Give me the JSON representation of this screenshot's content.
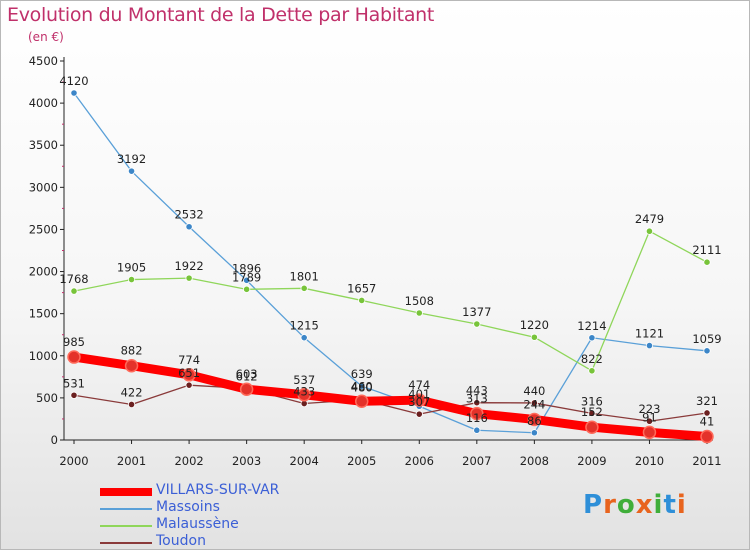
{
  "title": "Evolution du Montant de la Dette par Habitant",
  "unit": "(en €)",
  "logo": {
    "text": "Proxiti",
    "colors": [
      "#2e8fd8",
      "#e8641e",
      "#3fae3a",
      "#e8641e",
      "#3fae3a",
      "#2e8fd8",
      "#e8641e"
    ]
  },
  "chart_data": {
    "type": "line",
    "title": "Evolution du Montant de la Dette par Habitant",
    "ylabel": "(en €)",
    "xlabel": "",
    "x": [
      "2000",
      "2001",
      "2002",
      "2003",
      "2004",
      "2005",
      "2006",
      "2007",
      "2008",
      "2009",
      "2010",
      "2011"
    ],
    "ylim": [
      0,
      4500
    ],
    "yticks": [
      "0",
      "500",
      "1000",
      "1500",
      "2000",
      "2500",
      "3000",
      "3500",
      "4000",
      "4500"
    ],
    "grid": false,
    "legend_position": "bottom-left",
    "series": [
      {
        "name": "VILLARS-SUR-VAR",
        "color": "#ff0000",
        "point_color": "#e4322a",
        "values": [
          985,
          882,
          774,
          603,
          537,
          460,
          474,
          313,
          244,
          152,
          91,
          41
        ],
        "labels": [
          "985",
          "882",
          "774",
          "603",
          "537",
          "460",
          "474",
          "313",
          "244",
          "152",
          "91",
          "41"
        ]
      },
      {
        "name": "Massoins",
        "color": "#5aa0d8",
        "point_color": "#3c86c8",
        "values": [
          4120,
          3192,
          2532,
          1896,
          1215,
          639,
          401,
          116,
          86,
          1214,
          1121,
          1059
        ],
        "labels": [
          "4120",
          "3192",
          "2532",
          "1896",
          "1215",
          "639",
          "401",
          "116",
          "86",
          "1214",
          "1121",
          "1059"
        ]
      },
      {
        "name": "Malaussène",
        "color": "#8fd65a",
        "point_color": "#78c43a",
        "values": [
          1768,
          1905,
          1922,
          1789,
          1801,
          1657,
          1508,
          1377,
          1220,
          822,
          2479,
          2111
        ],
        "labels": [
          "1768",
          "1905",
          "1922",
          "1789",
          "1801",
          "1657",
          "1508",
          "1377",
          "1220",
          "822",
          "2479",
          "2111"
        ]
      },
      {
        "name": "Toudon",
        "color": "#8a3a3a",
        "point_color": "#6b2020",
        "values": [
          531,
          422,
          651,
          612,
          433,
          480,
          307,
          443,
          440,
          316,
          223,
          321
        ],
        "labels": [
          "531",
          "422",
          "651",
          "612",
          "433",
          "480",
          "307",
          "443",
          "440",
          "316",
          "223",
          "321"
        ]
      }
    ]
  }
}
